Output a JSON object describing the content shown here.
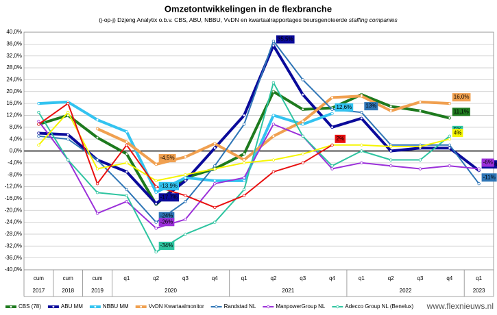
{
  "chart_data": {
    "type": "line",
    "title": "Omzetontwikkelingen in de flexbranche",
    "subtitle": "(j-op-j) Dzjeng Analytix o.b.v. CBS, ABU, NBBU, VvDN en kwartaalrapportages beursgenoteerde",
    "subtitle_emphasis": "staffing companies",
    "watermark": "www.flexnieuws.nl",
    "categories": [
      "cum",
      "cum",
      "cum",
      "q1",
      "q2",
      "q3",
      "q4",
      "q1",
      "q2",
      "q3",
      "q4",
      "q1",
      "q2",
      "q3",
      "q4",
      "q1"
    ],
    "years": [
      "2017",
      "2018",
      "2019",
      "2020",
      null,
      null,
      null,
      "2021",
      null,
      null,
      null,
      "2022",
      null,
      null,
      null,
      "2023"
    ],
    "ylim": [
      -40,
      40
    ],
    "yticks": [
      {
        "value": -40,
        "label": "-40,0%"
      },
      {
        "value": -36,
        "label": "-36,0%"
      },
      {
        "value": -32,
        "label": "-32,0%"
      },
      {
        "value": -28,
        "label": "-28,0%"
      },
      {
        "value": -24,
        "label": "-24,0%"
      },
      {
        "value": -20,
        "label": "-20,0%"
      },
      {
        "value": -16,
        "label": "-16,0%"
      },
      {
        "value": -12,
        "label": "-12,0%"
      },
      {
        "value": -8,
        "label": "-8,0%"
      },
      {
        "value": -4,
        "label": "-4,0%"
      },
      {
        "value": 0,
        "label": "0,0%"
      },
      {
        "value": 4,
        "label": "4,0%"
      },
      {
        "value": 8,
        "label": "8,0%"
      },
      {
        "value": 12,
        "label": "12,0%"
      },
      {
        "value": 16,
        "label": "16,0%"
      },
      {
        "value": 20,
        "label": "20,0%"
      },
      {
        "value": 24,
        "label": "24,0%"
      },
      {
        "value": 28,
        "label": "28,0%"
      },
      {
        "value": 32,
        "label": "32,0%"
      },
      {
        "value": 36,
        "label": "36,0%"
      },
      {
        "value": 40,
        "label": "40,0%"
      }
    ],
    "grid": true,
    "series": [
      {
        "name": "CBS (78)",
        "color": "#1e7a1e",
        "width": 4,
        "values": [
          9,
          12,
          4.5,
          -1,
          -18,
          -9,
          -6,
          -1,
          20,
          14,
          14.5,
          19,
          15,
          13.5,
          11.1,
          null
        ],
        "value_labels": [
          null,
          null,
          null,
          null,
          null,
          null,
          null,
          null,
          null,
          null,
          null,
          null,
          null,
          null,
          "11,1%",
          null
        ]
      },
      {
        "name": "ABU MM",
        "color": "#0a0a9a",
        "width": 4,
        "values": [
          6,
          5.5,
          -3,
          -7,
          -17.7,
          -10,
          1,
          12,
          35.5,
          19,
          8,
          11,
          0,
          1,
          1,
          -6.6
        ],
        "value_labels": [
          null,
          null,
          null,
          null,
          "-17,7%",
          null,
          null,
          null,
          "35,5%",
          null,
          null,
          null,
          null,
          null,
          null,
          "-6,6%"
        ]
      },
      {
        "name": "NBBU MM",
        "color": "#33c3f0",
        "width": 4,
        "values": [
          16,
          16.5,
          10.5,
          6.5,
          -13.9,
          -9,
          -10,
          -10,
          12,
          9,
          12.6,
          null,
          null,
          null,
          null,
          null
        ],
        "value_labels": [
          null,
          null,
          null,
          null,
          "-13,9%",
          null,
          null,
          null,
          null,
          null,
          "12,6%",
          null,
          null,
          null,
          null,
          null
        ]
      },
      {
        "name": "VvDN Kwartaalmonitor",
        "color": "#f0a050",
        "width": 4,
        "values": [
          null,
          null,
          7.5,
          3,
          -4.5,
          -2,
          2.5,
          -3,
          5,
          10,
          18,
          18.5,
          13.5,
          16.5,
          16,
          null
        ],
        "value_labels": [
          null,
          null,
          null,
          null,
          "-4,5%",
          null,
          null,
          null,
          null,
          null,
          null,
          null,
          null,
          null,
          "16,0%",
          null
        ]
      },
      {
        "name": "Randstad NL",
        "color": "#2e75b6",
        "width": 2,
        "values": [
          5,
          4,
          -3,
          -13,
          -24,
          -17,
          -5,
          9,
          37,
          24,
          14,
          13,
          2,
          2,
          2,
          -11
        ],
        "value_labels": [
          null,
          null,
          null,
          null,
          "-24%",
          null,
          null,
          null,
          null,
          null,
          null,
          "13%",
          null,
          null,
          null,
          "-11%"
        ]
      },
      {
        "name": "ManpowerGroup NL",
        "color": "#9b30d9",
        "width": 2,
        "values": [
          10,
          -3,
          -21,
          -17,
          -26,
          -23,
          -11,
          -9,
          9,
          5,
          -6,
          -4,
          -5,
          -6,
          -5,
          -6
        ],
        "value_labels": [
          null,
          null,
          null,
          null,
          "-26%",
          null,
          null,
          null,
          null,
          null,
          null,
          null,
          null,
          null,
          null,
          "-6%"
        ]
      },
      {
        "name": "Adecco Group NL (Benelux)",
        "color": "#2ec4a0",
        "width": 2,
        "values": [
          13,
          -3,
          -14,
          -15,
          -34,
          -28,
          -24,
          -13,
          23,
          5,
          -5,
          0,
          -3,
          -3,
          5,
          null
        ],
        "value_labels": [
          null,
          null,
          null,
          null,
          "-34%",
          null,
          null,
          null,
          null,
          null,
          null,
          null,
          null,
          null,
          "5%",
          null
        ]
      },
      {
        "color": "#f5f500",
        "width": 2,
        "values": [
          2,
          13,
          -6,
          -4,
          -10,
          -8,
          -6,
          -4,
          -3,
          -1,
          2,
          2,
          1.5,
          1.5,
          4,
          null
        ],
        "value_labels": [
          null,
          null,
          null,
          null,
          null,
          null,
          null,
          null,
          null,
          null,
          null,
          null,
          null,
          null,
          "4%",
          null
        ]
      },
      {
        "color": "#e81010",
        "width": 2,
        "values": [
          9,
          16,
          -11,
          2,
          -12,
          -15,
          -19,
          -15,
          -7,
          -4,
          2,
          null,
          null,
          null,
          null,
          null
        ],
        "value_labels": [
          null,
          null,
          null,
          null,
          null,
          null,
          null,
          null,
          null,
          null,
          "2%",
          null,
          null,
          null,
          null,
          null
        ]
      }
    ]
  }
}
